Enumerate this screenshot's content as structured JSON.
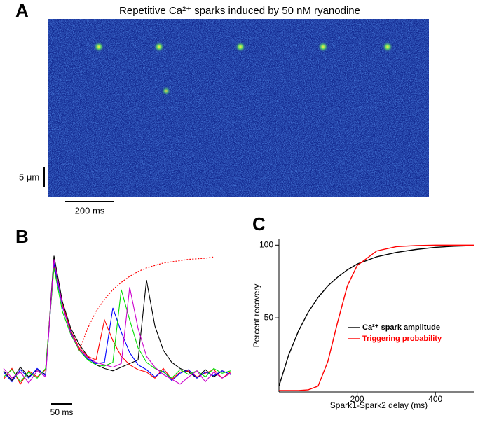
{
  "panel_labels": [
    "A",
    "B",
    "C"
  ],
  "linescan": {
    "title": "Repetitive Ca²⁺ sparks induced by 50 nM ryanodine",
    "scale_y_label": "5 μm",
    "scale_x_label": "200 ms"
  },
  "traces_scale_label": "50 ms",
  "chart_data": [
    {
      "type": "line",
      "axes": false,
      "x": [
        0,
        20,
        40,
        60,
        80,
        100,
        120,
        140,
        160,
        180,
        200,
        220,
        240,
        260,
        280,
        300,
        320,
        340,
        360,
        380,
        400,
        420,
        440,
        460,
        480,
        500,
        520,
        540
      ],
      "xlim": [
        0,
        555
      ],
      "ylim": [
        0,
        100
      ],
      "series": [
        {
          "color": "#000000",
          "values": [
            3,
            -5,
            6,
            -2,
            4,
            0,
            98,
            60,
            38,
            25,
            15,
            8,
            5,
            3,
            6,
            9,
            12,
            78,
            40,
            20,
            10,
            5,
            2,
            -3,
            4,
            -2,
            3,
            0
          ]
        },
        {
          "color": "#ff0000",
          "values": [
            -4,
            5,
            -8,
            3,
            -2,
            4,
            90,
            58,
            36,
            22,
            15,
            12,
            45,
            28,
            15,
            8,
            4,
            2,
            -3,
            5,
            -4,
            2,
            3,
            -2,
            1,
            4,
            -3,
            2
          ]
        },
        {
          "color": "#0000ff",
          "values": [
            2,
            -6,
            4,
            -3,
            5,
            -1,
            92,
            56,
            35,
            20,
            13,
            9,
            10,
            55,
            35,
            18,
            8,
            4,
            -2,
            3,
            -5,
            1,
            4,
            -3,
            2,
            -1,
            3,
            0
          ]
        },
        {
          "color": "#00dd00",
          "values": [
            -2,
            4,
            -6,
            2,
            -3,
            5,
            88,
            52,
            33,
            20,
            12,
            8,
            7,
            10,
            70,
            45,
            22,
            10,
            5,
            2,
            -3,
            4,
            0,
            3,
            -2,
            5,
            1,
            3
          ]
        },
        {
          "color": "#cc00cc",
          "values": [
            5,
            -3,
            2,
            -7,
            3,
            -2,
            95,
            57,
            34,
            21,
            14,
            10,
            8,
            6,
            9,
            72,
            38,
            15,
            6,
            0,
            -4,
            -8,
            -2,
            3,
            -6,
            2,
            -3,
            1
          ]
        },
        {
          "color": "#ff0000",
          "dash": "dotted",
          "values": [
            null,
            null,
            null,
            null,
            null,
            null,
            null,
            null,
            null,
            20,
            38,
            52,
            62,
            70,
            76,
            81,
            85,
            88,
            90,
            92,
            93,
            94,
            95,
            95.5,
            96,
            97,
            null,
            null
          ]
        }
      ]
    },
    {
      "type": "line",
      "axes": true,
      "x_label": "Spark1-Spark2 delay (ms)",
      "y_label": "Percent recovery",
      "x": [
        0,
        25,
        50,
        75,
        100,
        125,
        150,
        175,
        200,
        250,
        300,
        350,
        400,
        450,
        500
      ],
      "xlim": [
        0,
        500
      ],
      "ylim": [
        -1,
        104
      ],
      "xticks": [
        200,
        400
      ],
      "yticks": [
        50,
        100
      ],
      "series": [
        {
          "name": "Ca²⁺ spark amplitude",
          "color": "#000000",
          "values": [
            3,
            24.5,
            41,
            54,
            64,
            72,
            78,
            83,
            87,
            92,
            95,
            97,
            98.5,
            99.3,
            99.7
          ]
        },
        {
          "name": "Triggering probability",
          "color": "#ff0000",
          "values": [
            0,
            0,
            0,
            0.5,
            3,
            20,
            47,
            72,
            86,
            96,
            99,
            99.7,
            100,
            100,
            100
          ]
        }
      ]
    }
  ]
}
